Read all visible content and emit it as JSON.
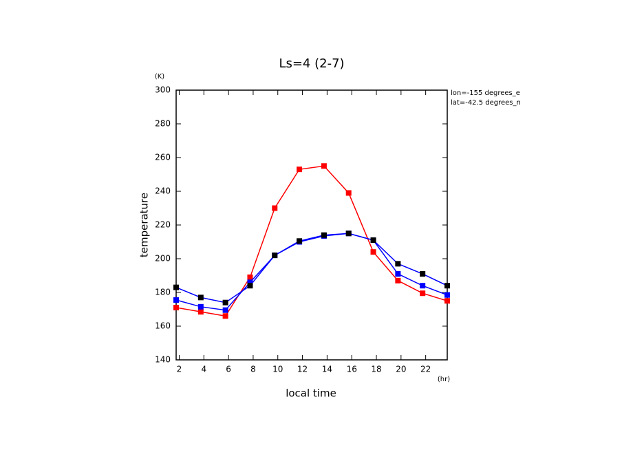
{
  "chart_data": {
    "type": "line",
    "title": "Ls=4 (2-7)",
    "x_label": "local time",
    "y_label": "temperature",
    "x_unit": "(hr)",
    "y_unit": "(K)",
    "annotations": [
      "lon=-155 degrees_e",
      "lat=-42.5 degrees_n"
    ],
    "x": [
      1.75,
      3.75,
      5.75,
      7.75,
      9.75,
      11.75,
      13.75,
      15.75,
      17.75,
      19.75,
      21.75,
      23.75
    ],
    "series": [
      {
        "color": "#ff0000",
        "line_color": "#ff0000",
        "values": [
          171,
          168.5,
          166,
          189,
          230,
          253,
          255,
          239,
          204,
          187,
          179.5,
          175
        ]
      },
      {
        "color": "#0000ff",
        "line_color": "#0000ff",
        "values": [
          175.5,
          171.5,
          169.5,
          186,
          202,
          210,
          213.5,
          215,
          211,
          191,
          184,
          178.5
        ]
      },
      {
        "color": "#000000",
        "line_color": "#0000ff",
        "values": [
          183,
          177,
          174,
          184,
          202,
          210.5,
          214,
          215,
          211,
          197,
          191,
          184
        ]
      }
    ],
    "xlim": [
      1.75,
      23.75
    ],
    "xticks": [
      2,
      4,
      6,
      8,
      10,
      12,
      14,
      16,
      18,
      20,
      22
    ],
    "ylim": [
      140,
      300
    ],
    "yticks": [
      140,
      160,
      180,
      200,
      220,
      240,
      260,
      280,
      300
    ]
  }
}
